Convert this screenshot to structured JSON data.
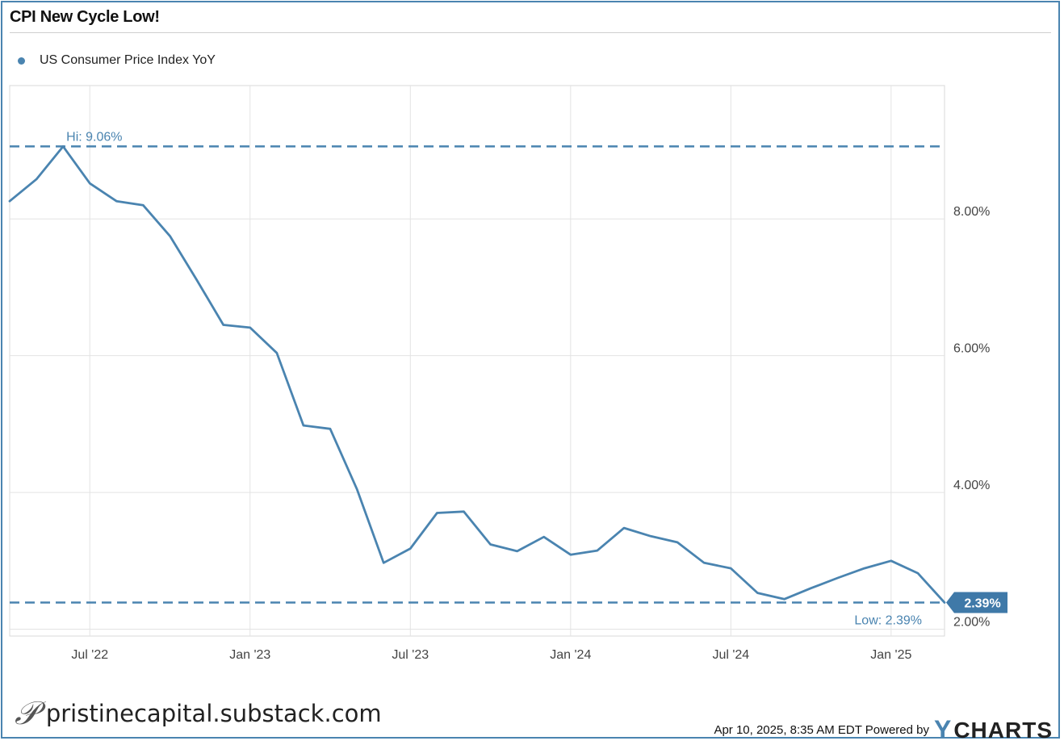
{
  "title": "CPI New Cycle Low!",
  "legend": {
    "label": "US Consumer Price Index YoY",
    "color": "#4a84b0"
  },
  "footer": {
    "site": "pristinecapital.substack.com",
    "timestamp": "Apr 10, 2025, 8:35 AM EDT Powered by",
    "brand": "CHARTS",
    "logo_icon": "script-p-logo"
  },
  "chart_data": {
    "type": "line",
    "series": [
      {
        "name": "US Consumer Price Index YoY",
        "color": "#4a84b0",
        "x": [
          "2022-04",
          "2022-05",
          "2022-06",
          "2022-07",
          "2022-08",
          "2022-09",
          "2022-10",
          "2022-11",
          "2022-12",
          "2023-01",
          "2023-02",
          "2023-03",
          "2023-04",
          "2023-05",
          "2023-06",
          "2023-07",
          "2023-08",
          "2023-09",
          "2023-10",
          "2023-11",
          "2023-12",
          "2024-01",
          "2024-02",
          "2024-03",
          "2024-04",
          "2024-05",
          "2024-06",
          "2024-07",
          "2024-08",
          "2024-09",
          "2024-10",
          "2024-11",
          "2024-12",
          "2025-01",
          "2025-02",
          "2025-03"
        ],
        "values": [
          8.26,
          8.58,
          9.06,
          8.52,
          8.26,
          8.2,
          7.75,
          7.11,
          6.45,
          6.41,
          6.04,
          4.98,
          4.93,
          4.05,
          2.97,
          3.18,
          3.7,
          3.72,
          3.24,
          3.14,
          3.35,
          3.09,
          3.15,
          3.48,
          3.36,
          3.27,
          2.97,
          2.89,
          2.53,
          2.44,
          2.6,
          2.75,
          2.89,
          3.0,
          2.82,
          2.39
        ]
      }
    ],
    "x_ticks": [
      "Jul '22",
      "Jan '23",
      "Jul '23",
      "Jan '24",
      "Jul '24",
      "Jan '25"
    ],
    "x_tick_dates": [
      "2022-07",
      "2023-01",
      "2023-07",
      "2024-01",
      "2024-07",
      "2025-01"
    ],
    "y_ticks": [
      2.0,
      4.0,
      6.0,
      8.0
    ],
    "y_tick_labels": [
      "2.00%",
      "4.00%",
      "6.00%",
      "8.00%"
    ],
    "ylim": [
      1.9,
      9.95
    ],
    "xlim": [
      "2022-04",
      "2025-03"
    ],
    "grid": true,
    "y_axis_side": "right",
    "legend_position": "top-left",
    "annotations": {
      "high": {
        "label": "Hi: 9.06%",
        "value": 9.06
      },
      "low": {
        "label": "Low: 2.39%",
        "value": 2.39
      },
      "last_value_label": "2.39%"
    }
  }
}
